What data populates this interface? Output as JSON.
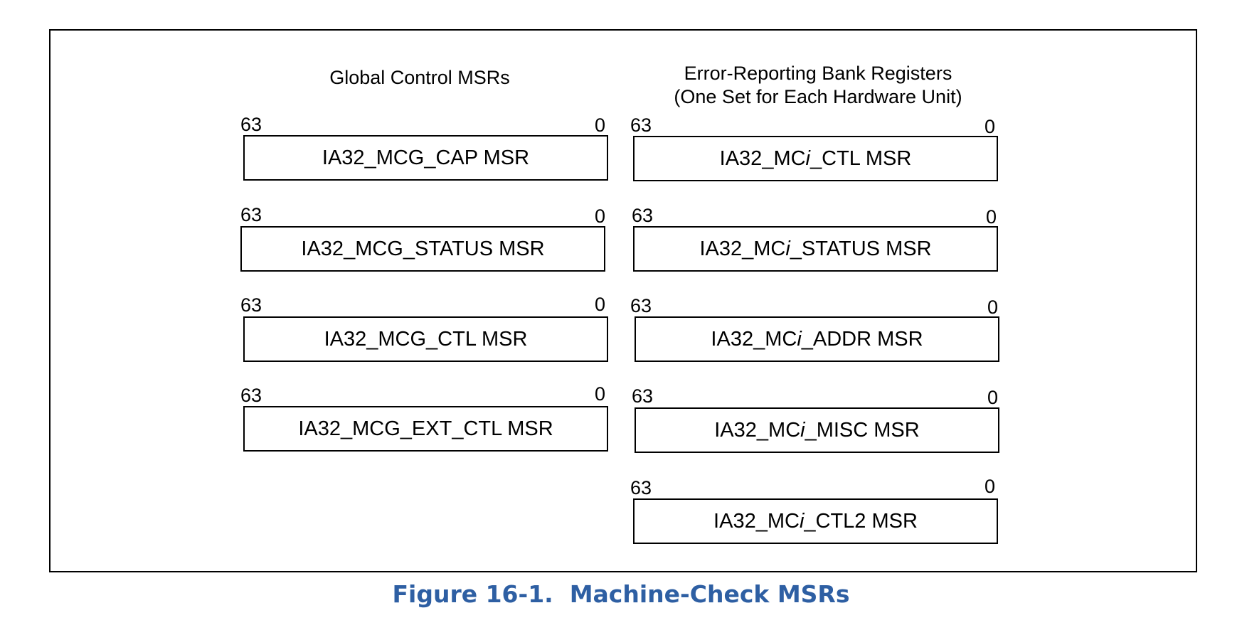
{
  "figure": {
    "caption": "Figure 16-1.  Machine-Check MSRs",
    "caption_color": "#2e5fa3"
  },
  "left_column": {
    "heading": "Global Control MSRs",
    "registers": [
      {
        "msb": "63",
        "lsb": "0",
        "name": "IA32_MCG_CAP MSR"
      },
      {
        "msb": "63",
        "lsb": "0",
        "name": "IA32_MCG_STATUS MSR"
      },
      {
        "msb": "63",
        "lsb": "0",
        "name": "IA32_MCG_CTL MSR"
      },
      {
        "msb": "63",
        "lsb": "0",
        "name": "IA32_MCG_EXT_CTL MSR"
      }
    ]
  },
  "right_column": {
    "heading_line1": "Error-Reporting Bank Registers",
    "heading_line2": "(One Set for Each Hardware Unit)",
    "registers": [
      {
        "msb": "63",
        "lsb": "0",
        "name_prefix": "IA32_MC",
        "name_var": "i",
        "name_suffix": "_CTL MSR"
      },
      {
        "msb": "63",
        "lsb": "0",
        "name_prefix": "IA32_MC",
        "name_var": "i",
        "name_suffix": "_STATUS MSR"
      },
      {
        "msb": "63",
        "lsb": "0",
        "name_prefix": "IA32_MC",
        "name_var": "i",
        "name_suffix": "_ADDR MSR"
      },
      {
        "msb": "63",
        "lsb": "0",
        "name_prefix": "IA32_MC",
        "name_var": "i",
        "name_suffix": "_MISC MSR"
      },
      {
        "msb": "63",
        "lsb": "0",
        "name_prefix": "IA32_MC",
        "name_var": "i",
        "name_suffix": "_CTL2 MSR"
      }
    ]
  }
}
